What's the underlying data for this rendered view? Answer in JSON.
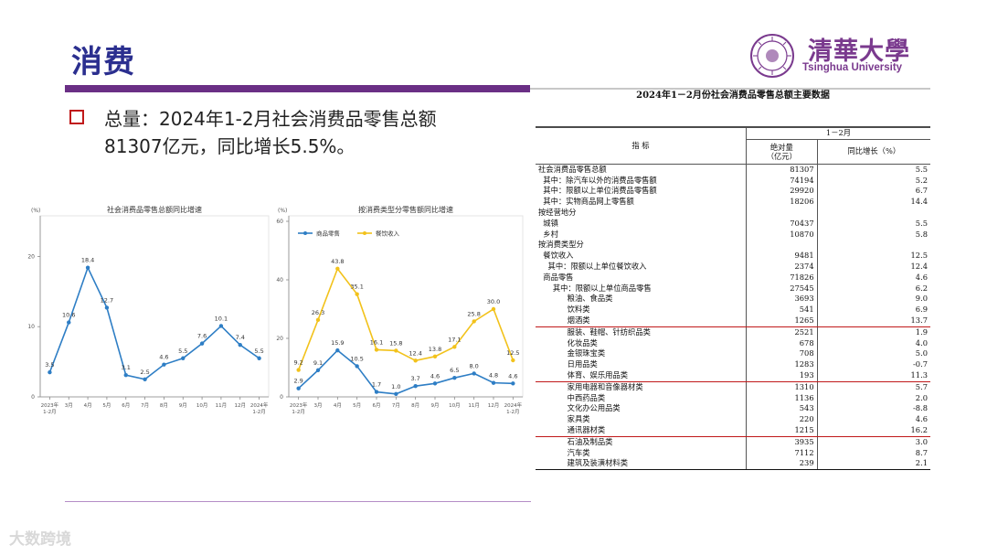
{
  "slide": {
    "title": "消费",
    "bullet_text": "总量：2024年1-2月社会消费品零售总额81307亿元，同比增长5.5%。",
    "logo_cn": "清華大學",
    "logo_en": "Tsinghua University",
    "watermark": "大数跨境"
  },
  "colors": {
    "title": "#2b2f8f",
    "accent_bar": "#6a2f85",
    "bullet": "#c0191a",
    "line_blue": "#2e7ec5",
    "line_yellow": "#f2c21b",
    "highlight_line": "#c0191a"
  },
  "chart_data": [
    {
      "type": "line",
      "title": "社会消费品零售总额同比增速",
      "ylabel": "(%)",
      "ylim": [
        0,
        25
      ],
      "yticks": [
        0,
        10,
        20
      ],
      "categories": [
        "2023年\n1-2月",
        "3月",
        "4月",
        "5月",
        "6月",
        "7月",
        "8月",
        "9月",
        "10月",
        "11月",
        "12月",
        "2024年\n1-2月"
      ],
      "series": [
        {
          "values": [
            3.5,
            10.6,
            18.4,
            12.7,
            3.1,
            2.5,
            4.6,
            5.5,
            7.6,
            10.1,
            7.4,
            5.5
          ]
        }
      ]
    },
    {
      "type": "line",
      "title": "按消费类型分零售额同比增速",
      "ylabel": "(%)",
      "ylim": [
        0,
        60
      ],
      "yticks": [
        0,
        20,
        40,
        60
      ],
      "legend": "top-left",
      "categories": [
        "2023年\n1-2月",
        "3月",
        "4月",
        "5月",
        "6月",
        "7月",
        "8月",
        "9月",
        "10月",
        "11月",
        "12月",
        "2024年\n1-2月"
      ],
      "series": [
        {
          "name": "商品零售",
          "values": [
            2.9,
            9.1,
            15.9,
            10.5,
            1.7,
            1.0,
            3.7,
            4.6,
            6.5,
            8.0,
            4.8,
            4.6
          ]
        },
        {
          "name": "餐饮收入",
          "values": [
            9.2,
            26.3,
            43.8,
            35.1,
            16.1,
            15.8,
            12.4,
            13.8,
            17.1,
            25.8,
            30.0,
            12.5
          ]
        }
      ]
    },
    {
      "type": "table",
      "title": "2024年1－2月份社会消费品零售总额主要数据",
      "header": {
        "indicator": "指    标",
        "period": "1－2月",
        "col1": "绝对量\n（亿元）",
        "col2": "同比增长（%）"
      },
      "rows": [
        [
          "社会消费品零售总额",
          "81307",
          "5.5"
        ],
        [
          "  其中：除汽车以外的消费品零售额",
          "74194",
          "5.2"
        ],
        [
          "  其中：限额以上单位消费品零售额",
          "29920",
          "6.7"
        ],
        [
          "  其中：实物商品网上零售额",
          "18206",
          "14.4"
        ],
        [
          "按经营地分",
          "",
          ""
        ],
        [
          "  城镇",
          "70437",
          "5.5"
        ],
        [
          "  乡村",
          "10870",
          "5.8"
        ],
        [
          "按消费类型分",
          "",
          ""
        ],
        [
          "  餐饮收入",
          "9481",
          "12.5"
        ],
        [
          "    其中：限额以上单位餐饮收入",
          "2374",
          "12.4"
        ],
        [
          "  商品零售",
          "71826",
          "4.6"
        ],
        [
          "      其中：限额以上单位商品零售",
          "27545",
          "6.2"
        ],
        [
          "            粮油、食品类",
          "3693",
          "9.0"
        ],
        [
          "            饮料类",
          "541",
          "6.9"
        ],
        [
          "            烟酒类",
          "1265",
          "13.7"
        ],
        [
          "            服装、鞋帽、针纺织品类",
          "2521",
          "1.9"
        ],
        [
          "            化妆品类",
          "678",
          "4.0"
        ],
        [
          "            金银珠宝类",
          "708",
          "5.0"
        ],
        [
          "            日用品类",
          "1283",
          "-0.7"
        ],
        [
          "            体育、娱乐用品类",
          "193",
          "11.3"
        ],
        [
          "            家用电器和音像器材类",
          "1310",
          "5.7"
        ],
        [
          "            中西药品类",
          "1136",
          "2.0"
        ],
        [
          "            文化办公用品类",
          "543",
          "-8.8"
        ],
        [
          "            家具类",
          "220",
          "4.6"
        ],
        [
          "            通讯器材类",
          "1215",
          "16.2"
        ],
        [
          "            石油及制品类",
          "3935",
          "3.0"
        ],
        [
          "            汽车类",
          "7112",
          "8.7"
        ],
        [
          "            建筑及装潢材料类",
          "239",
          "2.1"
        ]
      ]
    }
  ]
}
